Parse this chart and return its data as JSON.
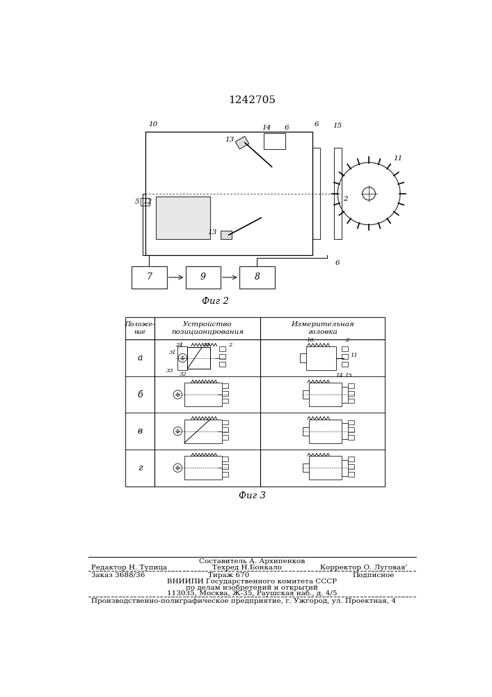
{
  "title": "1242705",
  "bg_color": "#f0ede8",
  "fig2_caption": "Фиг 2",
  "fig3_caption": "Фиг 3",
  "table_rows": [
    "а",
    "б",
    "в",
    "г"
  ],
  "footer_line1_center": "Составитель А. Архипенков",
  "footer_line2_left": "Редактор Н. Тупица",
  "footer_line2_center": "Техред Н.Бонкало",
  "footer_line2_right": "Корректор О. Луговая'",
  "footer_line3_left": "Заказ 3688/36",
  "footer_line3_center": "Тираж 670",
  "footer_line3_right": "Подписное",
  "footer_line4": "ВНИИПИ Государственного комитета СССР",
  "footer_line5": "по делам изобретений и открытий",
  "footer_line6": "113035, Москва, Ж-35, Раушская наб., д. 4/5",
  "footer_line7": "Производственно-полиграфическое предприятие, г. Ужгород, ул. Проектная, 4"
}
